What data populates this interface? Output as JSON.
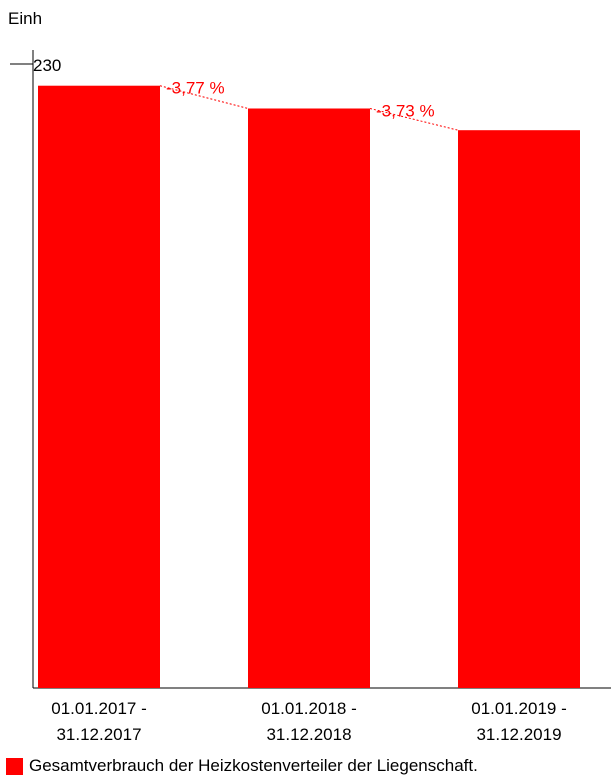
{
  "chart_data": {
    "type": "bar",
    "ylabel": "Einh",
    "ymax_label": "230",
    "ylim": [
      0,
      230
    ],
    "categories": [
      [
        "01.01.2017 -",
        "31.12.2017"
      ],
      [
        "01.01.2018 -",
        "31.12.2018"
      ],
      [
        "01.01.2019 -",
        "31.12.2019"
      ]
    ],
    "series": [
      {
        "name": "Gesamtverbrauch der Heizkostenverteiler der Liegenschaft.",
        "values": [
          222,
          213.6,
          205.6
        ]
      }
    ],
    "changes": [
      "-3,77 %",
      "-3,73 %"
    ],
    "bar_color": "#ff0000",
    "annotation_color": "#ff0000",
    "legend_position": "bottom-left"
  }
}
